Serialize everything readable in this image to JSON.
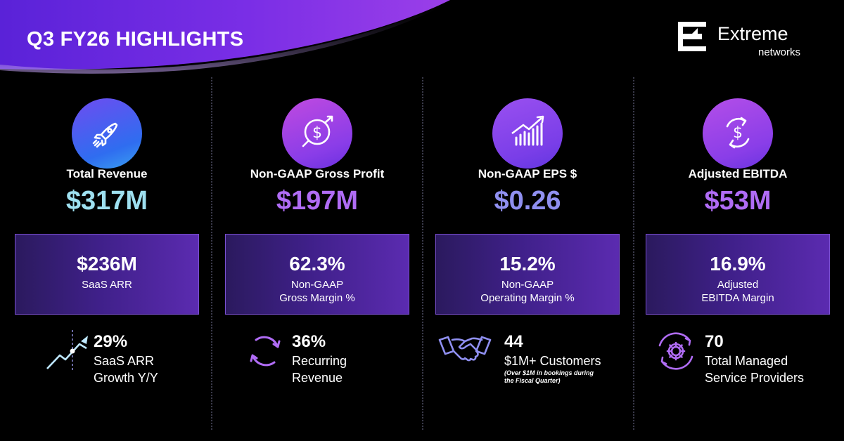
{
  "header": {
    "title": "Q3 FY26 HIGHLIGHTS"
  },
  "logo": {
    "word": "Extreme",
    "sub": "networks",
    "mark": "extreme-e-logo"
  },
  "colors": {
    "background": "#000000",
    "revenue_value": "#9ee0f0",
    "purple_value": "#b06cf5",
    "lavender_value": "#8f8ff0",
    "box_gradient_start": "#2b1a5e",
    "box_gradient_end": "#5b2bb0"
  },
  "columns": [
    {
      "icon": "rocket-icon",
      "label": "Total Revenue",
      "value": "$317M",
      "box": {
        "value": "$236M",
        "sub": [
          "SaaS ARR"
        ]
      },
      "stat": {
        "icon": "growth-chart-icon",
        "value": "29%",
        "label": [
          "SaaS ARR",
          "Growth Y/Y"
        ]
      }
    },
    {
      "icon": "dollar-circle-icon",
      "label": "Non-GAAP Gross Profit",
      "value": "$197M",
      "box": {
        "value": "62.3%",
        "sub": [
          "Non-GAAP",
          "Gross Margin %"
        ]
      },
      "stat": {
        "icon": "recurring-arrows-icon",
        "value": "36%",
        "label": [
          "Recurring",
          "Revenue"
        ]
      }
    },
    {
      "icon": "bar-chart-icon",
      "label": "Non-GAAP EPS $",
      "value": "$0.26",
      "box": {
        "value": "15.2%",
        "sub": [
          "Non-GAAP",
          "Operating Margin %"
        ]
      },
      "stat": {
        "icon": "handshake-icon",
        "value": "44",
        "label": [
          "$1M+ Customers"
        ],
        "note": [
          "(Over $1M in bookings during",
          "the Fiscal Quarter)"
        ]
      }
    },
    {
      "icon": "dollar-cycle-icon",
      "label": "Adjusted EBITDA",
      "value": "$53M",
      "box": {
        "value": "16.9%",
        "sub": [
          "Adjusted",
          "EBITDA Margin"
        ]
      },
      "stat": {
        "icon": "gear-cycle-icon",
        "value": "70",
        "label": [
          "Total Managed",
          "Service Providers"
        ]
      }
    }
  ]
}
